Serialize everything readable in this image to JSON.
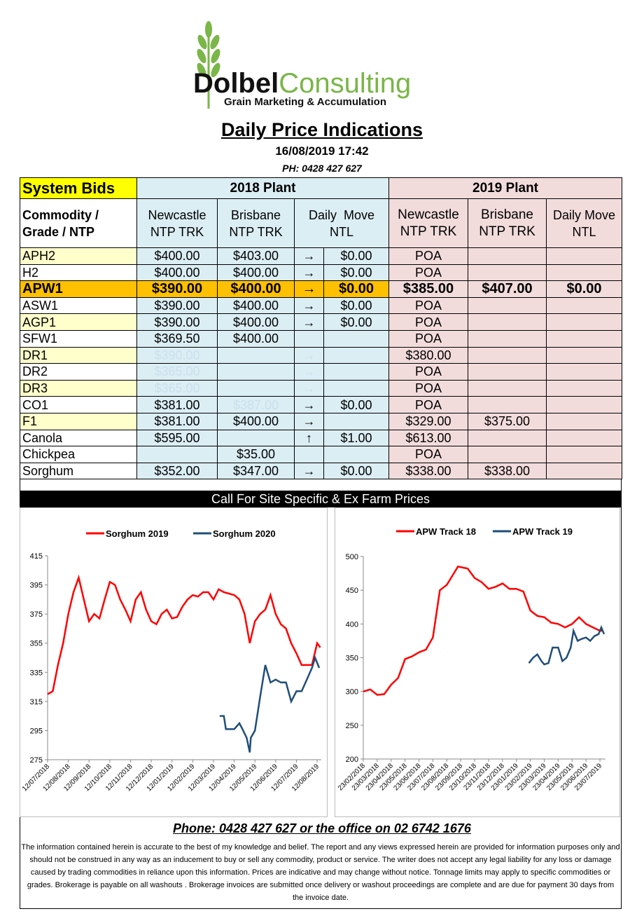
{
  "header": {
    "brand_first": "Dolbel",
    "brand_second": "Consulting",
    "tagline": "Grain Marketing & Accumulation",
    "title": "Daily Price Indications",
    "date": "16/08/2019 17:42",
    "phone": "PH: 0428 427 627"
  },
  "table": {
    "group_headers": [
      "System Bids",
      "2018 Plant",
      "2019 Plant"
    ],
    "column_headers": [
      "Commodity / Grade / NTP",
      "Newcastle NTP TRK",
      "Brisbane NTP TRK",
      "Daily  Move NTL",
      "Newcastle NTP TRK",
      "Brisbane NTP TRK",
      "Daily Move NTL"
    ],
    "rows": [
      {
        "color": "#ffffcc",
        "cells": [
          "APH2",
          "$400.00",
          "$403.00",
          "→",
          "$0.00",
          "POA",
          null,
          null
        ]
      },
      {
        "color": "#ffffff",
        "cells": [
          "H2",
          "$400.00",
          "$400.00",
          "→",
          "$0.00",
          "POA",
          null,
          null
        ]
      },
      {
        "color": "#ffc000",
        "highlight": "#ffc000",
        "bold": true,
        "cells": [
          "APW1",
          "$390.00",
          "$400.00",
          "→",
          "$0.00",
          "$385.00",
          "$407.00",
          "$0.00"
        ]
      },
      {
        "color": "#ffffff",
        "cells": [
          "ASW1",
          "$390.00",
          "$400.00",
          "→",
          "$0.00",
          "POA",
          null,
          null
        ]
      },
      {
        "color": "#ffffcc",
        "cells": [
          "AGP1",
          "$390.00",
          "$400.00",
          "→",
          "$0.00",
          "POA",
          null,
          null
        ]
      },
      {
        "color": "#ffffff",
        "cells": [
          "SFW1",
          "$369.50",
          "$400.00",
          null,
          null,
          "POA",
          null,
          null
        ]
      },
      {
        "color": "#ffffcc",
        "cells": [
          "DR1",
          {
            "text": "$390.00",
            "faded": true
          },
          null,
          {
            "text": "→",
            "faded": true
          },
          null,
          "$380.00",
          null,
          null
        ]
      },
      {
        "color": "#ffffff",
        "cells": [
          "DR2",
          {
            "text": "$365.00",
            "faded": true
          },
          null,
          {
            "text": "→",
            "faded": true
          },
          null,
          "POA",
          null,
          null
        ]
      },
      {
        "color": "#ffffcc",
        "cells": [
          "DR3",
          {
            "text": "$365.00",
            "faded": true
          },
          null,
          {
            "text": "→",
            "faded": true
          },
          null,
          "POA",
          null,
          null
        ]
      },
      {
        "color": "#ffffff",
        "cells": [
          "CO1",
          "$381.00",
          {
            "text": "$387.00",
            "faded": true
          },
          "→",
          "$0.00",
          "POA",
          null,
          null
        ]
      },
      {
        "color": "#ffffcc",
        "cells": [
          "F1",
          "$381.00",
          "$400.00",
          "→",
          null,
          "$329.00",
          "$375.00",
          null
        ]
      },
      {
        "color": "#ffffff",
        "cells": [
          "Canola",
          "$595.00",
          null,
          "↑",
          "$1.00",
          "$613.00",
          null,
          null
        ]
      },
      {
        "color": "#ffffff",
        "cells": [
          "Chickpea",
          null,
          "$35.00",
          null,
          null,
          "POA",
          null,
          null
        ]
      },
      {
        "color": "#ffffff",
        "cells": [
          "Sorghum",
          "$352.00",
          "$347.00",
          "→",
          "$0.00",
          "$338.00",
          "$338.00",
          null
        ]
      }
    ]
  },
  "banner": "Call For Site Specific & Ex Farm Prices",
  "chart_data": [
    {
      "type": "line",
      "xlim": [
        0,
        13.2
      ],
      "ylim": [
        275,
        415
      ],
      "yticks": [
        275,
        295,
        315,
        335,
        355,
        375,
        395,
        415
      ],
      "grid": false,
      "xticks": [
        {
          "value": 0,
          "label": "12/07/2018"
        },
        {
          "value": 1,
          "label": "12/08/2018"
        },
        {
          "value": 2,
          "label": "12/09/2018"
        },
        {
          "value": 3,
          "label": "12/10/2018"
        },
        {
          "value": 4,
          "label": "12/11/2018"
        },
        {
          "value": 5,
          "label": "12/12/2018"
        },
        {
          "value": 6,
          "label": "12/01/2019"
        },
        {
          "value": 7,
          "label": "12/02/2019"
        },
        {
          "value": 8,
          "label": "12/03/2019"
        },
        {
          "value": 9,
          "label": "12/04/2019"
        },
        {
          "value": 10,
          "label": "12/05/2019"
        },
        {
          "value": 11,
          "label": "12/06/2019"
        },
        {
          "value": 12,
          "label": "12/07/2019"
        },
        {
          "value": 13,
          "label": "12/08/2019"
        }
      ],
      "legend": "top",
      "series": [
        {
          "name": "Sorghum 2019",
          "color": "#ff0000",
          "x": [
            0,
            0.25,
            0.5,
            0.75,
            1,
            1.25,
            1.5,
            1.75,
            2,
            2.25,
            2.5,
            2.75,
            3,
            3.25,
            3.5,
            3.75,
            4,
            4.25,
            4.5,
            4.75,
            5,
            5.25,
            5.5,
            5.75,
            6,
            6.25,
            6.5,
            6.75,
            7,
            7.25,
            7.5,
            7.75,
            8,
            8.25,
            8.5,
            8.75,
            9,
            9.25,
            9.5,
            9.75,
            10,
            10.25,
            10.5,
            10.75,
            11,
            11.25,
            11.5,
            11.75,
            12,
            12.25,
            12.5,
            12.75,
            13,
            13.15
          ],
          "values": [
            320,
            322,
            340,
            355,
            375,
            390,
            400,
            385,
            370,
            375,
            372,
            385,
            397,
            395,
            385,
            378,
            370,
            385,
            390,
            378,
            370,
            368,
            375,
            378,
            372,
            373,
            380,
            385,
            388,
            387,
            390,
            390,
            385,
            392,
            390,
            389,
            388,
            385,
            375,
            355,
            370,
            375,
            378,
            388,
            375,
            368,
            365,
            355,
            348,
            340,
            340,
            340,
            355,
            352
          ]
        },
        {
          "name": "Sorghum 2020",
          "color": "#1f4e79",
          "x": [
            8.3,
            8.5,
            8.6,
            9,
            9.25,
            9.4,
            9.6,
            9.75,
            9.8,
            10,
            10.25,
            10.5,
            10.75,
            11,
            11.25,
            11.5,
            11.75,
            12,
            12.25,
            12.5,
            12.75,
            12.9,
            13.1
          ],
          "values": [
            305,
            305,
            296,
            296,
            300,
            296,
            290,
            280,
            290,
            295,
            318,
            340,
            328,
            330,
            328,
            328,
            315,
            322,
            322,
            330,
            338,
            345,
            338
          ]
        }
      ]
    },
    {
      "type": "line",
      "xlim": [
        0,
        17.4
      ],
      "ylim": [
        200,
        500
      ],
      "yticks": [
        200,
        250,
        300,
        350,
        400,
        450,
        500
      ],
      "grid": false,
      "xticks": [
        {
          "value": 0,
          "label": "23/02/2018"
        },
        {
          "value": 1,
          "label": "23/03/2018"
        },
        {
          "value": 2,
          "label": "23/04/2018"
        },
        {
          "value": 3,
          "label": "23/05/2018"
        },
        {
          "value": 4,
          "label": "23/06/2018"
        },
        {
          "value": 5,
          "label": "23/07/2018"
        },
        {
          "value": 6,
          "label": "23/08/2018"
        },
        {
          "value": 7,
          "label": "23/09/2018"
        },
        {
          "value": 8,
          "label": "23/10/2018"
        },
        {
          "value": 9,
          "label": "23/11/2018"
        },
        {
          "value": 10,
          "label": "23/12/2018"
        },
        {
          "value": 11,
          "label": "23/01/2019"
        },
        {
          "value": 12,
          "label": "23/02/2019"
        },
        {
          "value": 13,
          "label": "23/03/2019"
        },
        {
          "value": 14,
          "label": "23/04/2019"
        },
        {
          "value": 15,
          "label": "23/05/2019"
        },
        {
          "value": 16,
          "label": "23/06/2019"
        },
        {
          "value": 17,
          "label": "23/07/2019"
        }
      ],
      "legend": "top",
      "series": [
        {
          "name": "APW Track 18",
          "color": "#ff0000",
          "x": [
            0,
            0.5,
            1,
            1.5,
            2,
            2.5,
            3,
            3.5,
            4,
            4.5,
            5,
            5.5,
            6,
            6.5,
            6.8,
            7.5,
            8,
            8.5,
            9,
            9.5,
            10,
            10.5,
            11,
            11.5,
            12,
            12.5,
            13,
            13.5,
            14,
            14.5,
            15,
            15.5,
            16,
            16.5,
            17,
            17.2
          ],
          "values": [
            300,
            303,
            295,
            296,
            310,
            320,
            348,
            352,
            358,
            362,
            380,
            450,
            458,
            475,
            485,
            482,
            468,
            462,
            452,
            455,
            460,
            452,
            452,
            448,
            420,
            412,
            410,
            402,
            400,
            395,
            400,
            410,
            400,
            395,
            390,
            390
          ]
        },
        {
          "name": "APW Track 19",
          "color": "#1f4e79",
          "x": [
            11.9,
            12.2,
            12.5,
            12.8,
            13,
            13.3,
            13.6,
            14,
            14.3,
            14.6,
            14.9,
            15.1,
            15.4,
            15.7,
            16,
            16.3,
            16.6,
            16.9,
            17.1,
            17.3
          ],
          "values": [
            342,
            350,
            355,
            345,
            340,
            342,
            365,
            365,
            345,
            350,
            365,
            390,
            375,
            378,
            380,
            375,
            382,
            385,
            395,
            385
          ]
        }
      ]
    }
  ],
  "footer": {
    "phone": "Phone: 0428 427 627 or the office on 02 6742 1676",
    "disclaimer": "The information contained herein is accurate to the best of my knowledge and belief.  The report and any views expressed herein are provided for information purposes only and should not be construed in any way as an inducement to buy or sell any commodity, product or service. The writer does not accept any legal liability for any loss or damage caused by trading commodities in reliance upon this information. Prices are indicative and may change without notice. Tonnage limits may apply to specific commodities or grades.  Brokerage is payable on all washouts . Brokerage invoices are submitted once delivery or washout proceedings are complete and are due for payment 30 days from the invoice date."
  }
}
